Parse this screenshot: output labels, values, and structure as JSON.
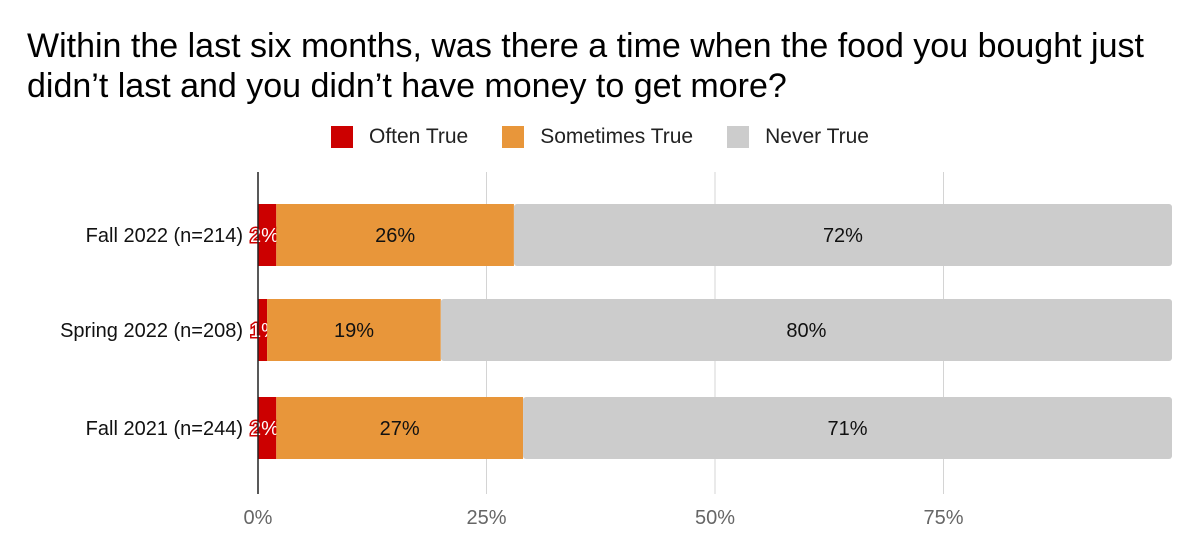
{
  "chart_data": {
    "type": "bar",
    "orientation": "horizontal",
    "stacked": true,
    "title": "Within the last six months, was there a time when the food you bought just didn’t last and you didn’t have money to get more?",
    "categories": [
      "Fall 2022 (n=214)",
      "Spring 2022 (n=208)",
      "Fall 2021 (n=244)"
    ],
    "series": [
      {
        "name": "Often True",
        "color": "#cc0000",
        "values": [
          2,
          1,
          2
        ],
        "labels": [
          "2%",
          "1%",
          "2%"
        ]
      },
      {
        "name": "Sometimes True",
        "color": "#e8963a",
        "values": [
          26,
          19,
          27
        ],
        "labels": [
          "26%",
          "19%",
          "27%"
        ]
      },
      {
        "name": "Never True",
        "color": "#cccccc",
        "values": [
          72,
          80,
          71
        ],
        "labels": [
          "72%",
          "80%",
          "71%"
        ]
      }
    ],
    "xlim": [
      0,
      100
    ],
    "xticks": [
      "0%",
      "25%",
      "50%",
      "75%"
    ],
    "xtick_values": [
      0,
      25,
      50,
      75
    ],
    "grid": true,
    "legend_position": "top"
  }
}
